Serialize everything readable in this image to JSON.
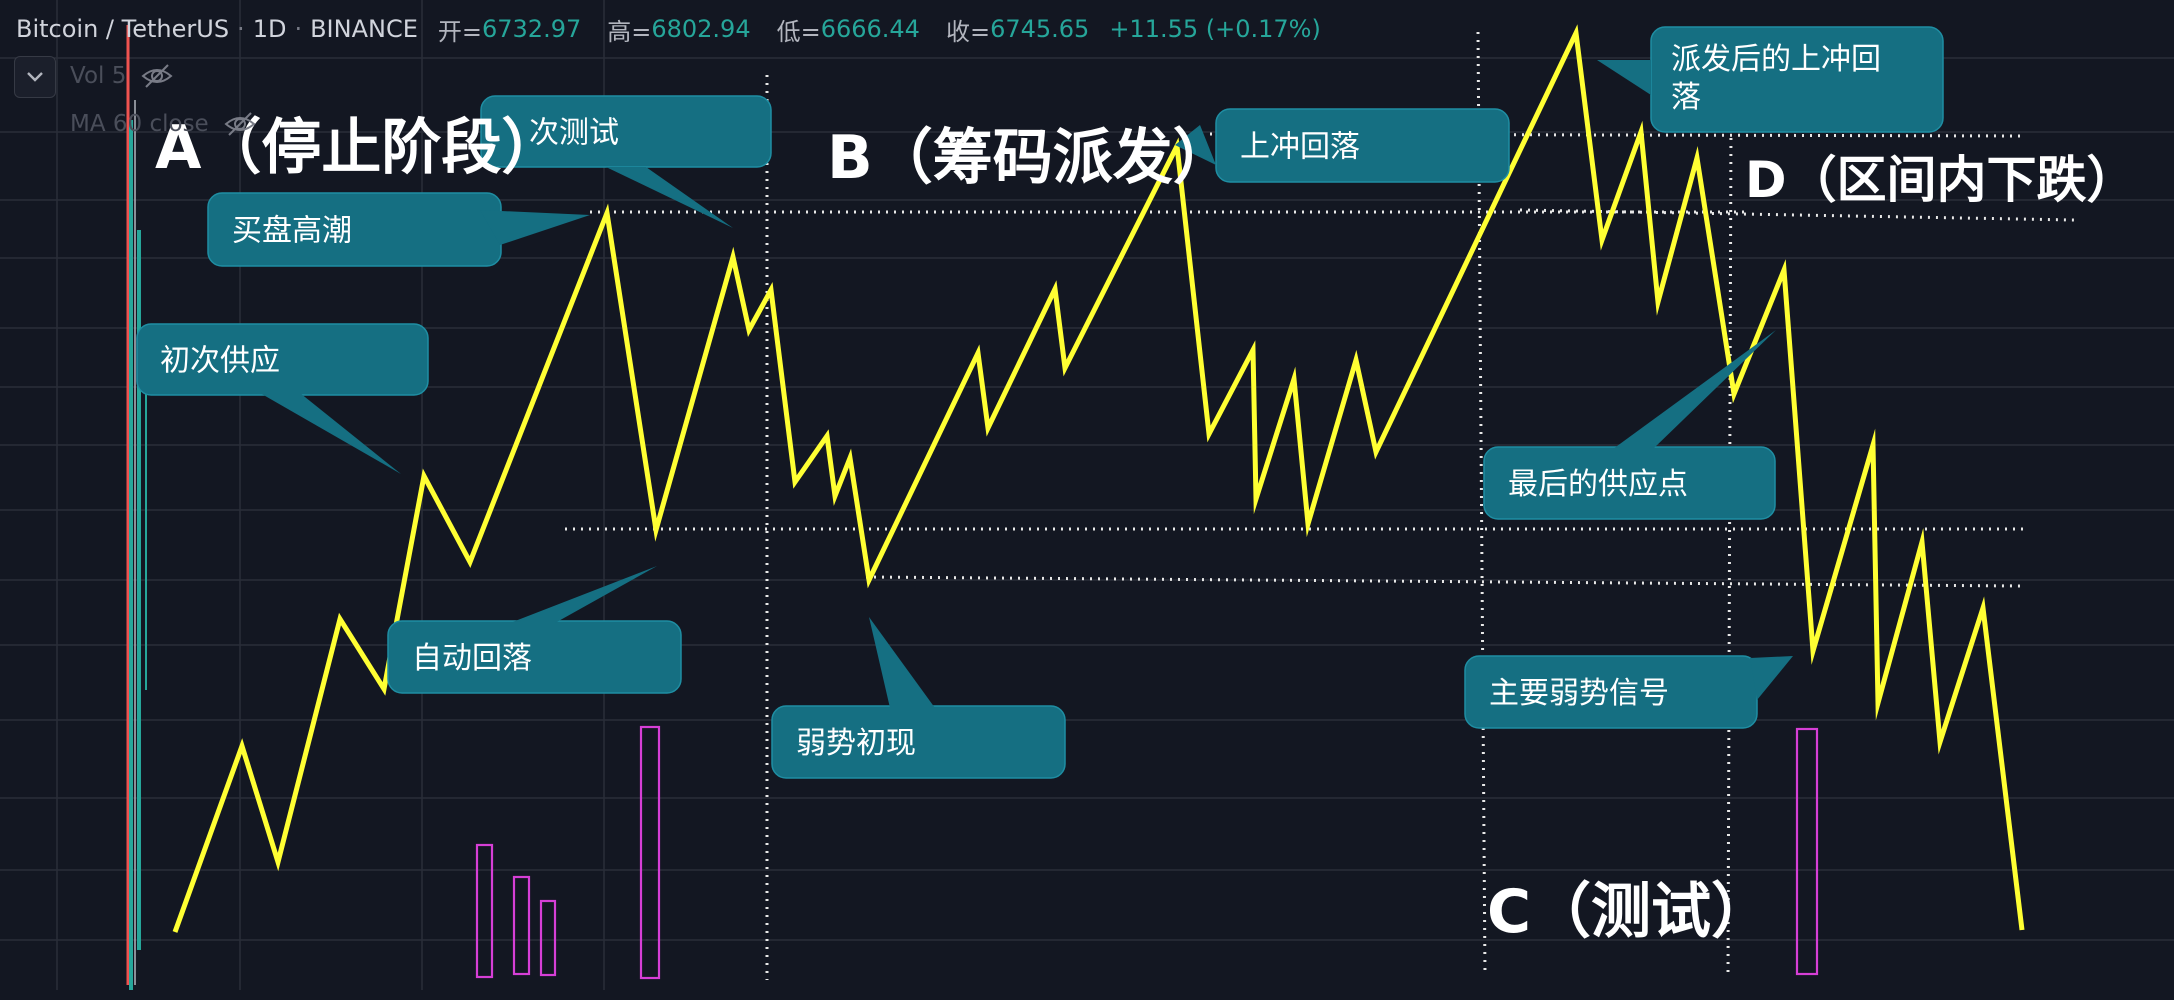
{
  "header": {
    "symbol": "Bitcoin / TetherUS",
    "interval": "1D",
    "exchange": "BINANCE",
    "open_label": "开=",
    "open_value": "6732.97",
    "high_label": "高=",
    "high_value": "6802.94",
    "low_label": "低=",
    "low_value": "6666.44",
    "close_label": "收=",
    "close_value": "6745.65",
    "change": "+11.55 (+0.17%)"
  },
  "indicators": {
    "volume_label": "Vol 5",
    "ma_label": "MA 60 close"
  },
  "icons": {
    "collapse": "chevron-down-icon",
    "visibility": "eye-off-icon"
  },
  "colors": {
    "background": "#131722",
    "price_line": "#ffff33",
    "callout": "#156f82",
    "volume_bars": "#d63fd6",
    "up": "#26a69a",
    "guide_lines": "#e8e8e8"
  },
  "chart_data": {
    "type": "line",
    "title": "",
    "xlabel": "",
    "ylabel": "",
    "grid": true,
    "series": [
      {
        "values": []
      }
    ],
    "phases": [
      "A（停止阶段）",
      "B（筹码派发）",
      "C（测试）",
      "D（区间内下跌）"
    ],
    "annotations": [
      "二次测试",
      "买盘高潮",
      "初次供应",
      "自动回落",
      "弱势初现",
      "上冲回落",
      "派发后的上冲回落",
      "最后的供应点",
      "主要弱势信号"
    ]
  }
}
